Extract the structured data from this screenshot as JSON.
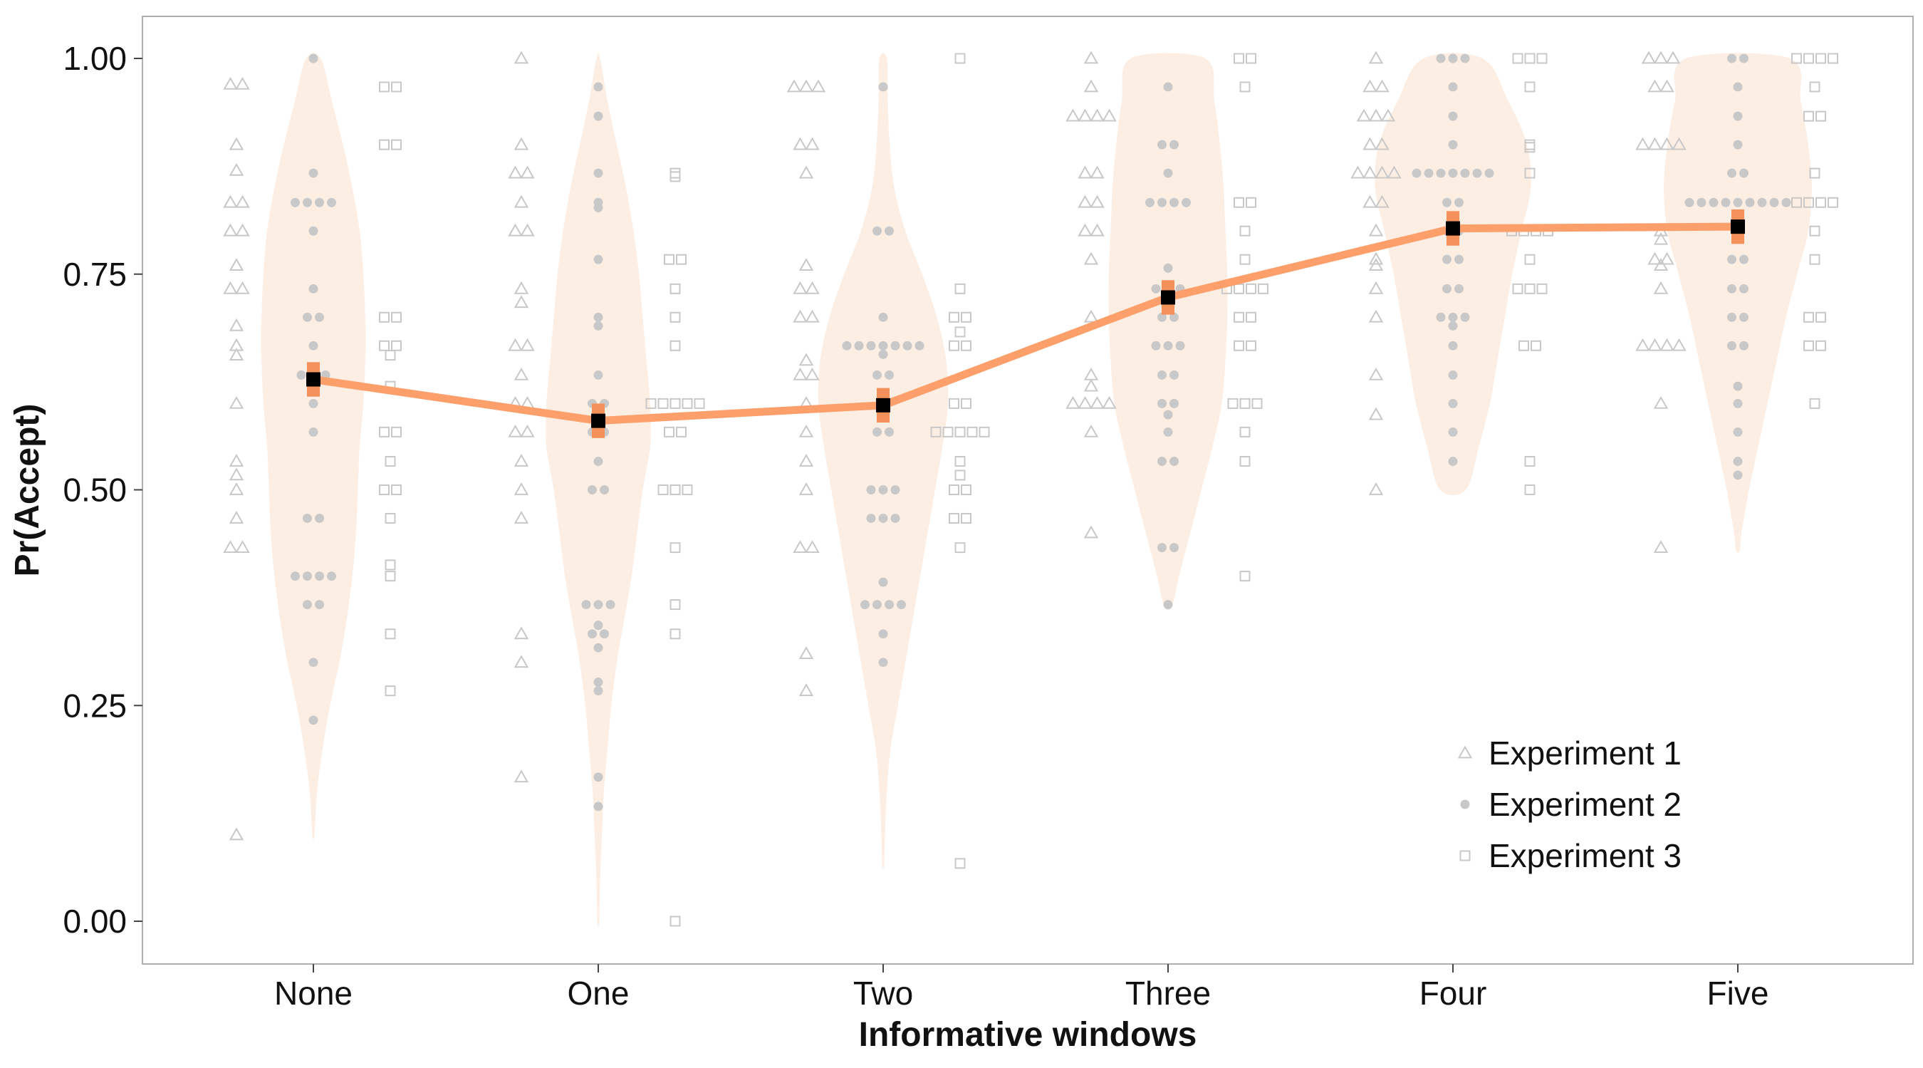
{
  "chart_data": {
    "type": "scatter",
    "title": "",
    "xlabel": "Informative windows",
    "ylabel": "Pr(Accept)",
    "categories": [
      "None",
      "One",
      "Two",
      "Three",
      "Four",
      "Five"
    ],
    "yticks": [
      "0.00",
      "0.25",
      "0.50",
      "0.75",
      "1.00"
    ],
    "ylim": [
      -0.05,
      1.05
    ],
    "grid": false,
    "legend_position": "bottom-right",
    "colors": {
      "mean_line": "#fc9f6b",
      "error_bar": "#f4915a",
      "violin": "#fdeee4",
      "points": "#c8c8c8",
      "mean_marker": "#000000",
      "panel_border": "#b0b0b0"
    },
    "mean_series": {
      "means": [
        0.628,
        0.58,
        0.598,
        0.723,
        0.803,
        0.805
      ],
      "se": [
        0.02,
        0.02,
        0.02,
        0.02,
        0.02,
        0.02
      ]
    },
    "violins": [
      {
        "profile": [
          [
            0.1,
            0.005
          ],
          [
            0.15,
            0.02
          ],
          [
            0.2,
            0.05
          ],
          [
            0.25,
            0.09
          ],
          [
            0.3,
            0.14
          ],
          [
            0.35,
            0.18
          ],
          [
            0.4,
            0.21
          ],
          [
            0.45,
            0.23
          ],
          [
            0.5,
            0.24
          ],
          [
            0.55,
            0.25
          ],
          [
            0.6,
            0.27
          ],
          [
            0.65,
            0.28
          ],
          [
            0.7,
            0.28
          ],
          [
            0.75,
            0.27
          ],
          [
            0.8,
            0.25
          ],
          [
            0.85,
            0.21
          ],
          [
            0.9,
            0.16
          ],
          [
            0.95,
            0.1
          ],
          [
            1.0,
            0.04
          ]
        ]
      },
      {
        "profile": [
          [
            0.0,
            0.005
          ],
          [
            0.05,
            0.01
          ],
          [
            0.1,
            0.02
          ],
          [
            0.15,
            0.03
          ],
          [
            0.2,
            0.05
          ],
          [
            0.25,
            0.07
          ],
          [
            0.3,
            0.1
          ],
          [
            0.35,
            0.14
          ],
          [
            0.4,
            0.18
          ],
          [
            0.45,
            0.21
          ],
          [
            0.5,
            0.24
          ],
          [
            0.55,
            0.28
          ],
          [
            0.6,
            0.28
          ],
          [
            0.65,
            0.26
          ],
          [
            0.7,
            0.24
          ],
          [
            0.75,
            0.22
          ],
          [
            0.8,
            0.19
          ],
          [
            0.85,
            0.15
          ],
          [
            0.9,
            0.1
          ],
          [
            0.95,
            0.05
          ],
          [
            1.0,
            0.01
          ]
        ]
      },
      {
        "profile": [
          [
            0.065,
            0.005
          ],
          [
            0.1,
            0.01
          ],
          [
            0.15,
            0.02
          ],
          [
            0.2,
            0.04
          ],
          [
            0.25,
            0.08
          ],
          [
            0.3,
            0.12
          ],
          [
            0.35,
            0.16
          ],
          [
            0.4,
            0.2
          ],
          [
            0.45,
            0.24
          ],
          [
            0.5,
            0.28
          ],
          [
            0.55,
            0.32
          ],
          [
            0.6,
            0.35
          ],
          [
            0.65,
            0.34
          ],
          [
            0.7,
            0.29
          ],
          [
            0.75,
            0.21
          ],
          [
            0.8,
            0.12
          ],
          [
            0.85,
            0.06
          ],
          [
            0.9,
            0.035
          ],
          [
            0.95,
            0.025
          ],
          [
            1.0,
            0.02
          ]
        ]
      },
      {
        "profile": [
          [
            0.365,
            0.02
          ],
          [
            0.4,
            0.06
          ],
          [
            0.45,
            0.12
          ],
          [
            0.5,
            0.18
          ],
          [
            0.55,
            0.24
          ],
          [
            0.6,
            0.29
          ],
          [
            0.65,
            0.31
          ],
          [
            0.7,
            0.32
          ],
          [
            0.75,
            0.32
          ],
          [
            0.8,
            0.31
          ],
          [
            0.85,
            0.3
          ],
          [
            0.9,
            0.28
          ],
          [
            0.95,
            0.25
          ],
          [
            1.0,
            0.2
          ]
        ]
      },
      {
        "profile": [
          [
            0.5,
            0.07
          ],
          [
            0.55,
            0.14
          ],
          [
            0.6,
            0.2
          ],
          [
            0.65,
            0.24
          ],
          [
            0.7,
            0.28
          ],
          [
            0.75,
            0.32
          ],
          [
            0.8,
            0.37
          ],
          [
            0.85,
            0.42
          ],
          [
            0.9,
            0.4
          ],
          [
            0.95,
            0.3
          ],
          [
            1.0,
            0.16
          ]
        ]
      },
      {
        "profile": [
          [
            0.43,
            0.01
          ],
          [
            0.45,
            0.02
          ],
          [
            0.5,
            0.06
          ],
          [
            0.55,
            0.11
          ],
          [
            0.6,
            0.16
          ],
          [
            0.65,
            0.21
          ],
          [
            0.7,
            0.26
          ],
          [
            0.75,
            0.32
          ],
          [
            0.8,
            0.38
          ],
          [
            0.85,
            0.4
          ],
          [
            0.9,
            0.38
          ],
          [
            0.95,
            0.34
          ],
          [
            1.0,
            0.28
          ]
        ]
      }
    ],
    "series": [
      {
        "name": "Experiment 1",
        "marker": "triangle",
        "offset": -0.27,
        "values": [
          [
            0.97,
            0.97,
            0.9,
            0.87,
            0.833,
            0.833,
            0.8,
            0.8,
            0.76,
            0.733,
            0.733,
            0.69,
            0.667,
            0.656,
            0.6,
            0.533,
            0.517,
            0.5,
            0.467,
            0.433,
            0.433,
            0.1
          ],
          [
            1.0,
            0.9,
            0.867,
            0.867,
            0.833,
            0.8,
            0.8,
            0.733,
            0.717,
            0.667,
            0.667,
            0.633,
            0.6,
            0.6,
            0.567,
            0.567,
            0.533,
            0.5,
            0.467,
            0.333,
            0.3,
            0.167
          ],
          [
            0.967,
            0.967,
            0.967,
            0.9,
            0.9,
            0.867,
            0.76,
            0.733,
            0.733,
            0.7,
            0.7,
            0.65,
            0.633,
            0.633,
            0.6,
            0.567,
            0.533,
            0.5,
            0.433,
            0.433,
            0.31,
            0.267
          ],
          [
            1.0,
            0.967,
            0.933,
            0.933,
            0.933,
            0.933,
            0.867,
            0.867,
            0.833,
            0.833,
            0.8,
            0.8,
            0.767,
            0.7,
            0.633,
            0.62,
            0.6,
            0.6,
            0.6,
            0.6,
            0.567,
            0.45
          ],
          [
            1.0,
            0.967,
            0.967,
            0.933,
            0.933,
            0.933,
            0.9,
            0.9,
            0.867,
            0.867,
            0.867,
            0.867,
            0.833,
            0.833,
            0.8,
            0.767,
            0.76,
            0.733,
            0.7,
            0.633,
            0.587,
            0.5
          ],
          [
            1.0,
            1.0,
            1.0,
            0.967,
            0.967,
            0.9,
            0.9,
            0.9,
            0.9,
            0.8,
            0.79,
            0.767,
            0.767,
            0.76,
            0.733,
            0.667,
            0.667,
            0.667,
            0.667,
            0.6,
            0.433
          ]
        ]
      },
      {
        "name": "Experiment 2",
        "marker": "circle",
        "offset": 0,
        "values": [
          [
            1.0,
            0.867,
            0.833,
            0.833,
            0.833,
            0.833,
            0.8,
            0.733,
            0.7,
            0.7,
            0.667,
            0.633,
            0.633,
            0.633,
            0.6,
            0.567,
            0.467,
            0.467,
            0.4,
            0.4,
            0.4,
            0.4,
            0.367,
            0.367,
            0.3,
            0.233
          ],
          [
            0.967,
            0.933,
            0.867,
            0.833,
            0.827,
            0.767,
            0.7,
            0.69,
            0.633,
            0.6,
            0.6,
            0.567,
            0.567,
            0.533,
            0.5,
            0.5,
            0.367,
            0.367,
            0.367,
            0.343,
            0.333,
            0.333,
            0.317,
            0.277,
            0.267,
            0.167,
            0.133
          ],
          [
            0.967,
            0.8,
            0.8,
            0.7,
            0.667,
            0.667,
            0.667,
            0.667,
            0.667,
            0.667,
            0.667,
            0.657,
            0.633,
            0.633,
            0.6,
            0.567,
            0.567,
            0.5,
            0.5,
            0.5,
            0.467,
            0.467,
            0.467,
            0.393,
            0.367,
            0.367,
            0.367,
            0.367,
            0.333,
            0.3
          ],
          [
            0.967,
            0.9,
            0.9,
            0.867,
            0.833,
            0.833,
            0.833,
            0.833,
            0.757,
            0.733,
            0.733,
            0.733,
            0.7,
            0.7,
            0.667,
            0.667,
            0.667,
            0.633,
            0.633,
            0.6,
            0.6,
            0.587,
            0.567,
            0.533,
            0.533,
            0.433,
            0.433,
            0.367
          ],
          [
            1.0,
            1.0,
            1.0,
            0.967,
            0.933,
            0.9,
            0.867,
            0.867,
            0.867,
            0.867,
            0.867,
            0.867,
            0.867,
            0.833,
            0.833,
            0.8,
            0.8,
            0.767,
            0.767,
            0.733,
            0.733,
            0.7,
            0.7,
            0.7,
            0.69,
            0.667,
            0.633,
            0.6,
            0.567,
            0.533
          ],
          [
            1.0,
            1.0,
            0.967,
            0.933,
            0.9,
            0.867,
            0.867,
            0.833,
            0.833,
            0.833,
            0.833,
            0.833,
            0.833,
            0.833,
            0.833,
            0.833,
            0.8,
            0.767,
            0.767,
            0.733,
            0.733,
            0.7,
            0.7,
            0.667,
            0.667,
            0.62,
            0.6,
            0.567,
            0.533,
            0.517
          ]
        ]
      },
      {
        "name": "Experiment 3",
        "marker": "square",
        "offset": 0.27,
        "values": [
          [
            0.967,
            0.967,
            0.9,
            0.9,
            0.7,
            0.7,
            0.667,
            0.667,
            0.656,
            0.62,
            0.567,
            0.567,
            0.533,
            0.5,
            0.5,
            0.467,
            0.413,
            0.4,
            0.333,
            0.267
          ],
          [
            0.863,
            0.867,
            0.767,
            0.767,
            0.733,
            0.7,
            0.667,
            0.6,
            0.6,
            0.6,
            0.6,
            0.6,
            0.567,
            0.567,
            0.5,
            0.5,
            0.5,
            0.433,
            0.367,
            0.333,
            0.0
          ],
          [
            1.0,
            0.733,
            0.7,
            0.7,
            0.683,
            0.667,
            0.667,
            0.6,
            0.6,
            0.567,
            0.567,
            0.567,
            0.567,
            0.567,
            0.533,
            0.517,
            0.5,
            0.5,
            0.467,
            0.467,
            0.433,
            0.067
          ],
          [
            1.0,
            1.0,
            0.967,
            0.833,
            0.833,
            0.8,
            0.767,
            0.733,
            0.733,
            0.733,
            0.733,
            0.7,
            0.7,
            0.667,
            0.667,
            0.6,
            0.6,
            0.6,
            0.567,
            0.533,
            0.4
          ],
          [
            1.0,
            1.0,
            1.0,
            0.967,
            0.9,
            0.897,
            0.867,
            0.8,
            0.8,
            0.8,
            0.8,
            0.767,
            0.733,
            0.733,
            0.733,
            0.667,
            0.667,
            0.533,
            0.5
          ],
          [
            1.0,
            1.0,
            1.0,
            1.0,
            0.967,
            0.933,
            0.933,
            0.867,
            0.833,
            0.833,
            0.833,
            0.833,
            0.8,
            0.767,
            0.7,
            0.7,
            0.667,
            0.667,
            0.6
          ]
        ]
      }
    ]
  }
}
